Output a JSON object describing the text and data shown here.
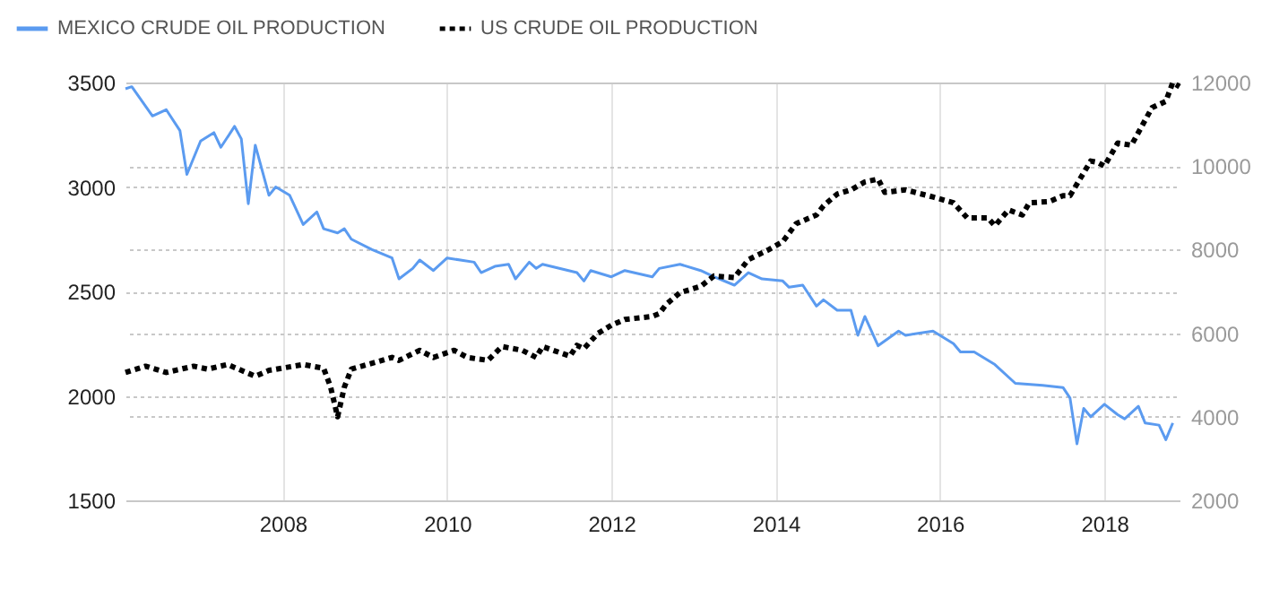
{
  "chart_data": {
    "type": "line",
    "xlim": [
      "2006-02",
      "2018-12"
    ],
    "xticks": [
      "2008",
      "2010",
      "2012",
      "2014",
      "2016",
      "2018"
    ],
    "ylim": [
      1500,
      3500
    ],
    "yticks": [
      1500,
      2000,
      2500,
      3000,
      3500
    ],
    "y2lim": [
      2000,
      12000
    ],
    "y2ticks": [
      2000,
      4000,
      6000,
      8000,
      10000,
      12000
    ],
    "grid": true,
    "legend": "top left",
    "series": [
      {
        "name": "MEXICO CRUDE OIL PRODUCTION",
        "color": "#5b9bf0",
        "line_style": "solid",
        "x": [
          "2006-02",
          "2006-03",
          "2006-06",
          "2006-08",
          "2006-10",
          "2006-11",
          "2007-01",
          "2007-03",
          "2007-04",
          "2007-06",
          "2007-07",
          "2007-08",
          "2007-09",
          "2007-11",
          "2007-12",
          "2008-02",
          "2008-04",
          "2008-06",
          "2008-07",
          "2008-09",
          "2008-10",
          "2008-11",
          "2009-02",
          "2009-05",
          "2009-06",
          "2009-08",
          "2009-09",
          "2009-11",
          "2010-01",
          "2010-05",
          "2010-06",
          "2010-08",
          "2010-10",
          "2010-11",
          "2011-01",
          "2011-02",
          "2011-03",
          "2011-08",
          "2011-09",
          "2011-10",
          "2012-01",
          "2012-03",
          "2012-07",
          "2012-08",
          "2012-11",
          "2013-02",
          "2013-04",
          "2013-07",
          "2013-09",
          "2013-11",
          "2014-02",
          "2014-03",
          "2014-05",
          "2014-07",
          "2014-08",
          "2014-10",
          "2014-12",
          "2015-01",
          "2015-02",
          "2015-04",
          "2015-07",
          "2015-08",
          "2015-12",
          "2016-03",
          "2016-04",
          "2016-06",
          "2016-09",
          "2016-12",
          "2017-04",
          "2017-07",
          "2017-08",
          "2017-09",
          "2017-10",
          "2017-11",
          "2018-01",
          "2018-03",
          "2018-04",
          "2018-06",
          "2018-07",
          "2018-09",
          "2018-10",
          "2018-11"
        ],
        "values": [
          3470,
          3480,
          3340,
          3370,
          3270,
          3060,
          3220,
          3260,
          3190,
          3290,
          3230,
          2920,
          3200,
          2960,
          3000,
          2960,
          2820,
          2880,
          2800,
          2780,
          2800,
          2750,
          2700,
          2660,
          2560,
          2610,
          2650,
          2600,
          2660,
          2640,
          2590,
          2620,
          2630,
          2560,
          2640,
          2610,
          2630,
          2590,
          2550,
          2600,
          2570,
          2600,
          2570,
          2610,
          2630,
          2600,
          2570,
          2530,
          2590,
          2560,
          2550,
          2520,
          2530,
          2430,
          2460,
          2410,
          2410,
          2290,
          2380,
          2240,
          2310,
          2290,
          2310,
          2250,
          2210,
          2210,
          2150,
          2060,
          2050,
          2040,
          1990,
          1770,
          1940,
          1900,
          1960,
          1910,
          1890,
          1950,
          1870,
          1860,
          1790,
          1870
        ]
      },
      {
        "name": "US CRUDE OIL PRODUCTION",
        "color": "#000000",
        "line_style": "dotted",
        "axis": "y2",
        "x": [
          "2006-02",
          "2006-05",
          "2006-08",
          "2006-12",
          "2007-02",
          "2007-05",
          "2007-09",
          "2007-11",
          "2008-04",
          "2008-07",
          "2008-08",
          "2008-09",
          "2008-10",
          "2008-11",
          "2009-02",
          "2009-05",
          "2009-06",
          "2009-09",
          "2009-11",
          "2010-02",
          "2010-04",
          "2010-07",
          "2010-09",
          "2010-12",
          "2011-02",
          "2011-03",
          "2011-07",
          "2011-08",
          "2011-09",
          "2011-11",
          "2012-01",
          "2012-03",
          "2012-07",
          "2012-08",
          "2012-09",
          "2012-11",
          "2013-02",
          "2013-04",
          "2013-07",
          "2013-09",
          "2013-12",
          "2014-02",
          "2014-04",
          "2014-07",
          "2014-08",
          "2014-10",
          "2014-12",
          "2015-02",
          "2015-04",
          "2015-05",
          "2015-08",
          "2015-12",
          "2016-03",
          "2016-05",
          "2016-08",
          "2016-09",
          "2016-11",
          "2017-01",
          "2017-02",
          "2017-05",
          "2017-07",
          "2017-08",
          "2017-11",
          "2017-12",
          "2018-01",
          "2018-03",
          "2018-05",
          "2018-08",
          "2018-10",
          "2018-11",
          "2018-12"
        ],
        "values": [
          5060,
          5210,
          5060,
          5210,
          5140,
          5250,
          4970,
          5110,
          5250,
          5160,
          4710,
          4000,
          4710,
          5140,
          5280,
          5420,
          5350,
          5590,
          5420,
          5590,
          5420,
          5350,
          5680,
          5590,
          5420,
          5680,
          5450,
          5710,
          5630,
          5990,
          6190,
          6330,
          6400,
          6470,
          6690,
          6970,
          7120,
          7370,
          7330,
          7760,
          8000,
          8190,
          8620,
          8830,
          9050,
          9330,
          9430,
          9620,
          9690,
          9370,
          9430,
          9260,
          9120,
          8760,
          8760,
          8570,
          8950,
          8830,
          9120,
          9150,
          9290,
          9290,
          10120,
          10090,
          10000,
          10550,
          10500,
          11400,
          11550,
          12000,
          11900
        ]
      }
    ]
  }
}
